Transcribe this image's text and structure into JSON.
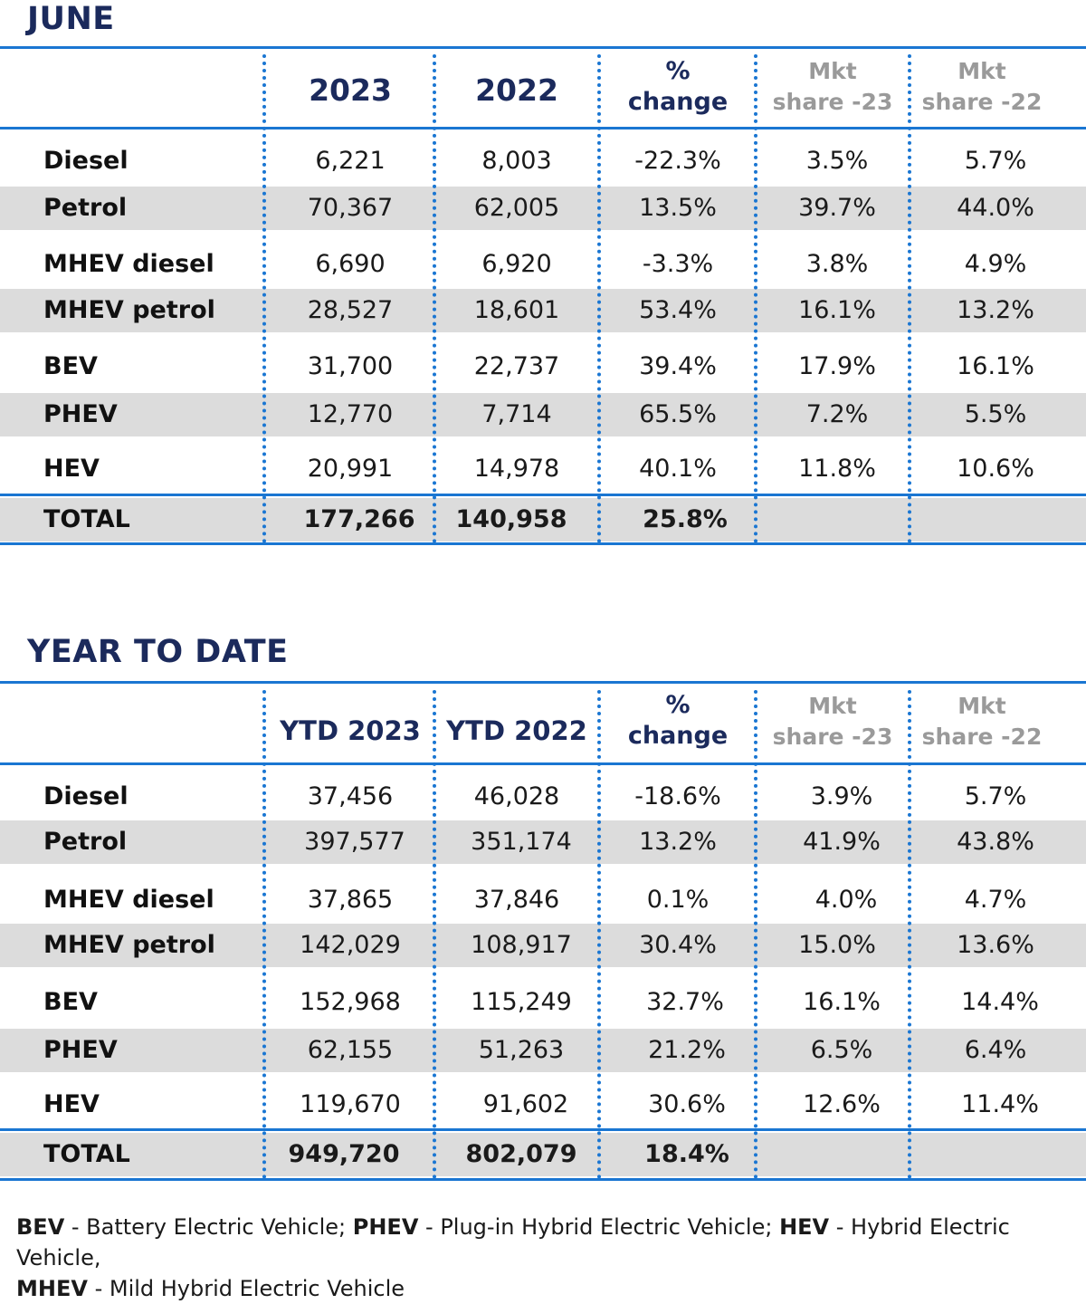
{
  "chart_data": [
    {
      "type": "table",
      "title": "JUNE",
      "columns": [
        "",
        "2023",
        "2022",
        "% change",
        "Mkt share -23",
        "Mkt share -22"
      ],
      "header": {
        "col1": "2023",
        "col2": "2022",
        "pct_line1": "%",
        "pct_line2": "change",
        "mkt23_line1": "Mkt",
        "mkt23_line2": "share -23",
        "mkt22_line1": "Mkt",
        "mkt22_line2": "share -22"
      },
      "rows": [
        {
          "label": "Diesel",
          "v1": "6,221",
          "v2": "8,003",
          "pct": "-22.3%",
          "m23": "3.5%",
          "m22": "5.7%"
        },
        {
          "label": "Petrol",
          "v1": "70,367",
          "v2": "62,005",
          "pct": "13.5%",
          "m23": "39.7%",
          "m22": "44.0%"
        },
        {
          "label": "MHEV diesel",
          "v1": "6,690",
          "v2": "6,920",
          "pct": "-3.3%",
          "m23": "3.8%",
          "m22": "4.9%"
        },
        {
          "label": "MHEV petrol",
          "v1": "28,527",
          "v2": "18,601",
          "pct": "53.4%",
          "m23": "16.1%",
          "m22": "13.2%"
        },
        {
          "label": "BEV",
          "v1": "31,700",
          "v2": "22,737",
          "pct": "39.4%",
          "m23": "17.9%",
          "m22": "16.1%"
        },
        {
          "label": "PHEV",
          "v1": "12,770",
          "v2": "7,714",
          "pct": "65.5%",
          "m23": "7.2%",
          "m22": "5.5%"
        },
        {
          "label": "HEV",
          "v1": "20,991",
          "v2": "14,978",
          "pct": "40.1%",
          "m23": "11.8%",
          "m22": "10.6%"
        }
      ],
      "total": {
        "label": "TOTAL",
        "v1": "177,266",
        "v2": "140,958",
        "pct": "25.8%"
      }
    },
    {
      "type": "table",
      "title": "YEAR TO DATE",
      "columns": [
        "",
        "YTD 2023",
        "YTD 2022",
        "% change",
        "Mkt share -23",
        "Mkt share -22"
      ],
      "header": {
        "col1": "YTD 2023",
        "col2": "YTD 2022",
        "pct_line1": "%",
        "pct_line2": "change",
        "mkt23_line1": "Mkt",
        "mkt23_line2": "share -23",
        "mkt22_line1": "Mkt",
        "mkt22_line2": "share -22"
      },
      "rows": [
        {
          "label": "Diesel",
          "v1": "37,456",
          "v2": "46,028",
          "pct": "-18.6%",
          "m23": "3.9%",
          "m22": "5.7%"
        },
        {
          "label": "Petrol",
          "v1": "397,577",
          "v2": "351,174",
          "pct": "13.2%",
          "m23": "41.9%",
          "m22": "43.8%"
        },
        {
          "label": "MHEV diesel",
          "v1": "37,865",
          "v2": "37,846",
          "pct": "0.1%",
          "m23": "4.0%",
          "m22": "4.7%"
        },
        {
          "label": "MHEV petrol",
          "v1": "142,029",
          "v2": "108,917",
          "pct": "30.4%",
          "m23": "15.0%",
          "m22": "13.6%"
        },
        {
          "label": "BEV",
          "v1": "152,968",
          "v2": "115,249",
          "pct": "32.7%",
          "m23": "16.1%",
          "m22": "14.4%"
        },
        {
          "label": "PHEV",
          "v1": "62,155",
          "v2": "51,263",
          "pct": "21.2%",
          "m23": "6.5%",
          "m22": "6.4%"
        },
        {
          "label": "HEV",
          "v1": "119,670",
          "v2": "91,602",
          "pct": "30.6%",
          "m23": "12.6%",
          "m22": "11.4%"
        }
      ],
      "total": {
        "label": "TOTAL",
        "v1": "949,720",
        "v2": "802,079",
        "pct": "18.4%"
      }
    }
  ],
  "footer": {
    "bev_abbr": "BEV",
    "bev_text": " - Battery Electric Vehicle; ",
    "phev_abbr": "PHEV",
    "phev_text": " - Plug-in Hybrid Electric Vehicle; ",
    "hev_abbr": "HEV",
    "hev_text": " - Hybrid Electric Vehicle,",
    "mhev_abbr": "MHEV",
    "mhev_text": " - Mild Hybrid Electric Vehicle"
  },
  "colors": {
    "accent": "#1a76d2",
    "title": "#1b2a5c",
    "shade": "#dcdcdc",
    "muted": "#9a9a9a"
  }
}
